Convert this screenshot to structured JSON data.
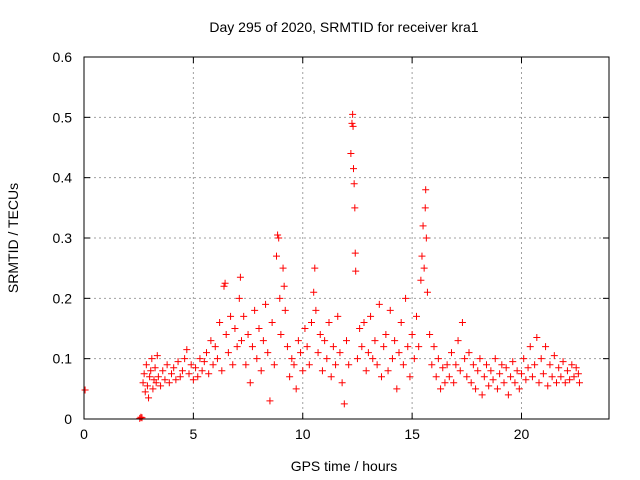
{
  "chart_data": {
    "type": "scatter",
    "title": "Day 295 of 2020, SRMTID for receiver kra1",
    "xlabel": "GPS time / hours",
    "ylabel": "SRMTID / TECUs",
    "xlim": [
      0,
      24
    ],
    "ylim": [
      0,
      0.6
    ],
    "xticks": [
      0,
      5,
      10,
      15,
      20
    ],
    "yticks": [
      0,
      0.1,
      0.2,
      0.3,
      0.4,
      0.5,
      0.6
    ],
    "xtick_labels": [
      "0",
      "5",
      "10",
      "15",
      "20"
    ],
    "ytick_labels": [
      "0",
      "0.1",
      "0.2",
      "0.3",
      "0.4",
      "0.5",
      "0.6"
    ],
    "grid": true,
    "marker": "+",
    "color": "#ff0000",
    "series": [
      {
        "name": "kra1",
        "points": [
          [
            0.05,
            0.048
          ],
          [
            2.55,
            0.001
          ],
          [
            2.6,
            0.003
          ],
          [
            2.65,
            0.002
          ],
          [
            2.7,
            0.06
          ],
          [
            2.75,
            0.075
          ],
          [
            2.8,
            0.045
          ],
          [
            2.85,
            0.09
          ],
          [
            2.9,
            0.055
          ],
          [
            2.95,
            0.035
          ],
          [
            3.0,
            0.07
          ],
          [
            3.05,
            0.08
          ],
          [
            3.1,
            0.1
          ],
          [
            3.15,
            0.05
          ],
          [
            3.2,
            0.065
          ],
          [
            3.25,
            0.085
          ],
          [
            3.3,
            0.06
          ],
          [
            3.35,
            0.105
          ],
          [
            3.4,
            0.07
          ],
          [
            3.5,
            0.055
          ],
          [
            3.6,
            0.08
          ],
          [
            3.7,
            0.065
          ],
          [
            3.8,
            0.09
          ],
          [
            3.9,
            0.06
          ],
          [
            4.0,
            0.075
          ],
          [
            4.1,
            0.085
          ],
          [
            4.2,
            0.065
          ],
          [
            4.3,
            0.095
          ],
          [
            4.4,
            0.07
          ],
          [
            4.5,
            0.08
          ],
          [
            4.6,
            0.1
          ],
          [
            4.7,
            0.115
          ],
          [
            4.8,
            0.075
          ],
          [
            4.9,
            0.09
          ],
          [
            5.0,
            0.065
          ],
          [
            5.1,
            0.085
          ],
          [
            5.2,
            0.07
          ],
          [
            5.3,
            0.1
          ],
          [
            5.4,
            0.08
          ],
          [
            5.5,
            0.095
          ],
          [
            5.6,
            0.11
          ],
          [
            5.7,
            0.075
          ],
          [
            5.8,
            0.13
          ],
          [
            5.9,
            0.09
          ],
          [
            6.0,
            0.12
          ],
          [
            6.1,
            0.1
          ],
          [
            6.2,
            0.16
          ],
          [
            6.3,
            0.08
          ],
          [
            6.4,
            0.22
          ],
          [
            6.45,
            0.225
          ],
          [
            6.5,
            0.14
          ],
          [
            6.6,
            0.11
          ],
          [
            6.7,
            0.17
          ],
          [
            6.8,
            0.09
          ],
          [
            6.9,
            0.15
          ],
          [
            7.0,
            0.12
          ],
          [
            7.1,
            0.2
          ],
          [
            7.15,
            0.235
          ],
          [
            7.2,
            0.13
          ],
          [
            7.3,
            0.17
          ],
          [
            7.4,
            0.09
          ],
          [
            7.5,
            0.14
          ],
          [
            7.6,
            0.06
          ],
          [
            7.7,
            0.12
          ],
          [
            7.8,
            0.18
          ],
          [
            7.9,
            0.1
          ],
          [
            8.0,
            0.15
          ],
          [
            8.1,
            0.08
          ],
          [
            8.2,
            0.13
          ],
          [
            8.3,
            0.19
          ],
          [
            8.4,
            0.11
          ],
          [
            8.5,
            0.03
          ],
          [
            8.6,
            0.16
          ],
          [
            8.7,
            0.09
          ],
          [
            8.8,
            0.27
          ],
          [
            8.85,
            0.305
          ],
          [
            8.9,
            0.3
          ],
          [
            8.95,
            0.2
          ],
          [
            9.0,
            0.14
          ],
          [
            9.1,
            0.25
          ],
          [
            9.15,
            0.22
          ],
          [
            9.2,
            0.18
          ],
          [
            9.3,
            0.12
          ],
          [
            9.4,
            0.07
          ],
          [
            9.5,
            0.1
          ],
          [
            9.6,
            0.09
          ],
          [
            9.7,
            0.05
          ],
          [
            9.8,
            0.13
          ],
          [
            9.9,
            0.11
          ],
          [
            10.0,
            0.08
          ],
          [
            10.1,
            0.15
          ],
          [
            10.2,
            0.12
          ],
          [
            10.3,
            0.09
          ],
          [
            10.4,
            0.16
          ],
          [
            10.5,
            0.21
          ],
          [
            10.55,
            0.25
          ],
          [
            10.6,
            0.18
          ],
          [
            10.7,
            0.11
          ],
          [
            10.8,
            0.14
          ],
          [
            10.9,
            0.08
          ],
          [
            11.0,
            0.13
          ],
          [
            11.1,
            0.1
          ],
          [
            11.2,
            0.16
          ],
          [
            11.3,
            0.07
          ],
          [
            11.4,
            0.12
          ],
          [
            11.5,
            0.09
          ],
          [
            11.6,
            0.17
          ],
          [
            11.7,
            0.11
          ],
          [
            11.8,
            0.06
          ],
          [
            11.9,
            0.025
          ],
          [
            12.0,
            0.13
          ],
          [
            12.1,
            0.09
          ],
          [
            12.2,
            0.44
          ],
          [
            12.25,
            0.49
          ],
          [
            12.28,
            0.505
          ],
          [
            12.3,
            0.485
          ],
          [
            12.32,
            0.415
          ],
          [
            12.35,
            0.39
          ],
          [
            12.38,
            0.35
          ],
          [
            12.4,
            0.275
          ],
          [
            12.42,
            0.245
          ],
          [
            12.5,
            0.1
          ],
          [
            12.6,
            0.15
          ],
          [
            12.7,
            0.12
          ],
          [
            12.8,
            0.16
          ],
          [
            12.9,
            0.08
          ],
          [
            13.0,
            0.11
          ],
          [
            13.1,
            0.17
          ],
          [
            13.2,
            0.1
          ],
          [
            13.3,
            0.13
          ],
          [
            13.4,
            0.09
          ],
          [
            13.5,
            0.19
          ],
          [
            13.6,
            0.07
          ],
          [
            13.7,
            0.12
          ],
          [
            13.8,
            0.14
          ],
          [
            13.9,
            0.08
          ],
          [
            14.0,
            0.18
          ],
          [
            14.1,
            0.1
          ],
          [
            14.2,
            0.13
          ],
          [
            14.3,
            0.05
          ],
          [
            14.4,
            0.11
          ],
          [
            14.5,
            0.16
          ],
          [
            14.6,
            0.09
          ],
          [
            14.7,
            0.2
          ],
          [
            14.8,
            0.12
          ],
          [
            14.9,
            0.07
          ],
          [
            15.0,
            0.14
          ],
          [
            15.1,
            0.1
          ],
          [
            15.2,
            0.17
          ],
          [
            15.3,
            0.12
          ],
          [
            15.4,
            0.23
          ],
          [
            15.45,
            0.27
          ],
          [
            15.5,
            0.32
          ],
          [
            15.55,
            0.25
          ],
          [
            15.6,
            0.35
          ],
          [
            15.62,
            0.38
          ],
          [
            15.65,
            0.3
          ],
          [
            15.7,
            0.21
          ],
          [
            15.8,
            0.14
          ],
          [
            15.9,
            0.09
          ],
          [
            16.0,
            0.12
          ],
          [
            16.1,
            0.07
          ],
          [
            16.2,
            0.1
          ],
          [
            16.3,
            0.05
          ],
          [
            16.4,
            0.085
          ],
          [
            16.5,
            0.06
          ],
          [
            16.6,
            0.09
          ],
          [
            16.7,
            0.07
          ],
          [
            16.8,
            0.11
          ],
          [
            16.9,
            0.06
          ],
          [
            17.0,
            0.09
          ],
          [
            17.1,
            0.13
          ],
          [
            17.2,
            0.08
          ],
          [
            17.3,
            0.16
          ],
          [
            17.4,
            0.1
          ],
          [
            17.5,
            0.07
          ],
          [
            17.6,
            0.11
          ],
          [
            17.7,
            0.06
          ],
          [
            17.8,
            0.09
          ],
          [
            17.9,
            0.05
          ],
          [
            18.0,
            0.08
          ],
          [
            18.1,
            0.1
          ],
          [
            18.2,
            0.04
          ],
          [
            18.3,
            0.07
          ],
          [
            18.4,
            0.09
          ],
          [
            18.5,
            0.055
          ],
          [
            18.6,
            0.08
          ],
          [
            18.7,
            0.065
          ],
          [
            18.8,
            0.1
          ],
          [
            18.9,
            0.05
          ],
          [
            19.0,
            0.075
          ],
          [
            19.1,
            0.09
          ],
          [
            19.2,
            0.06
          ],
          [
            19.3,
            0.085
          ],
          [
            19.4,
            0.04
          ],
          [
            19.5,
            0.07
          ],
          [
            19.6,
            0.095
          ],
          [
            19.7,
            0.06
          ],
          [
            19.8,
            0.08
          ],
          [
            19.9,
            0.05
          ],
          [
            20.0,
            0.075
          ],
          [
            20.1,
            0.1
          ],
          [
            20.2,
            0.065
          ],
          [
            20.3,
            0.085
          ],
          [
            20.4,
            0.12
          ],
          [
            20.5,
            0.07
          ],
          [
            20.6,
            0.09
          ],
          [
            20.7,
            0.135
          ],
          [
            20.8,
            0.06
          ],
          [
            20.9,
            0.1
          ],
          [
            21.0,
            0.075
          ],
          [
            21.1,
            0.12
          ],
          [
            21.2,
            0.055
          ],
          [
            21.3,
            0.09
          ],
          [
            21.4,
            0.07
          ],
          [
            21.5,
            0.105
          ],
          [
            21.6,
            0.06
          ],
          [
            21.7,
            0.085
          ],
          [
            21.8,
            0.07
          ],
          [
            21.9,
            0.095
          ],
          [
            22.0,
            0.06
          ],
          [
            22.1,
            0.08
          ],
          [
            22.2,
            0.065
          ],
          [
            22.3,
            0.09
          ],
          [
            22.4,
            0.07
          ],
          [
            22.5,
            0.085
          ],
          [
            22.6,
            0.075
          ],
          [
            22.65,
            0.06
          ]
        ]
      }
    ]
  }
}
